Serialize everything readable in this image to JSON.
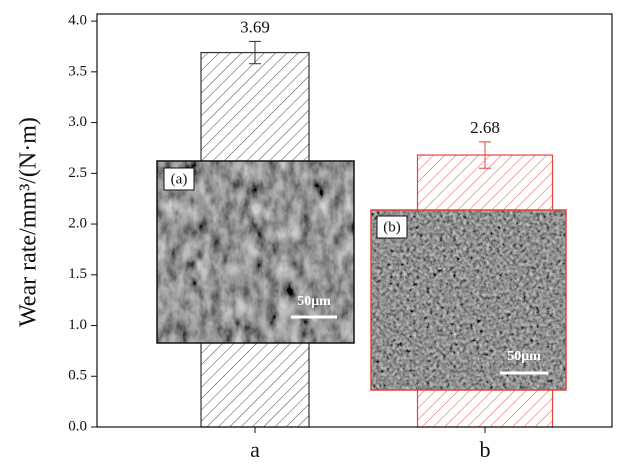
{
  "chart_data": {
    "type": "bar",
    "ylabel": "Wear rate/mm³/(N·m)",
    "categories": [
      "a",
      "b"
    ],
    "values": [
      3.69,
      2.68
    ],
    "errors": [
      0.11,
      0.13
    ],
    "colors": [
      "#333333",
      "#e8403a"
    ],
    "ylim": [
      0,
      4.07
    ],
    "yticks": [
      {
        "value": 0,
        "label": "0.0"
      },
      {
        "value": 0.5,
        "label": "0.5"
      },
      {
        "value": 1,
        "label": "1.0"
      },
      {
        "value": 1.5,
        "label": "1.5"
      },
      {
        "value": 2,
        "label": "2.0"
      },
      {
        "value": 2.5,
        "label": "2.5"
      },
      {
        "value": 3,
        "label": "3.0"
      },
      {
        "value": 3.5,
        "label": "3.5"
      },
      {
        "value": 4,
        "label": "4.0"
      }
    ],
    "insets": [
      {
        "label": "(a)",
        "scale_bar": "50μm"
      },
      {
        "label": "(b)",
        "scale_bar": "50μm"
      }
    ]
  }
}
